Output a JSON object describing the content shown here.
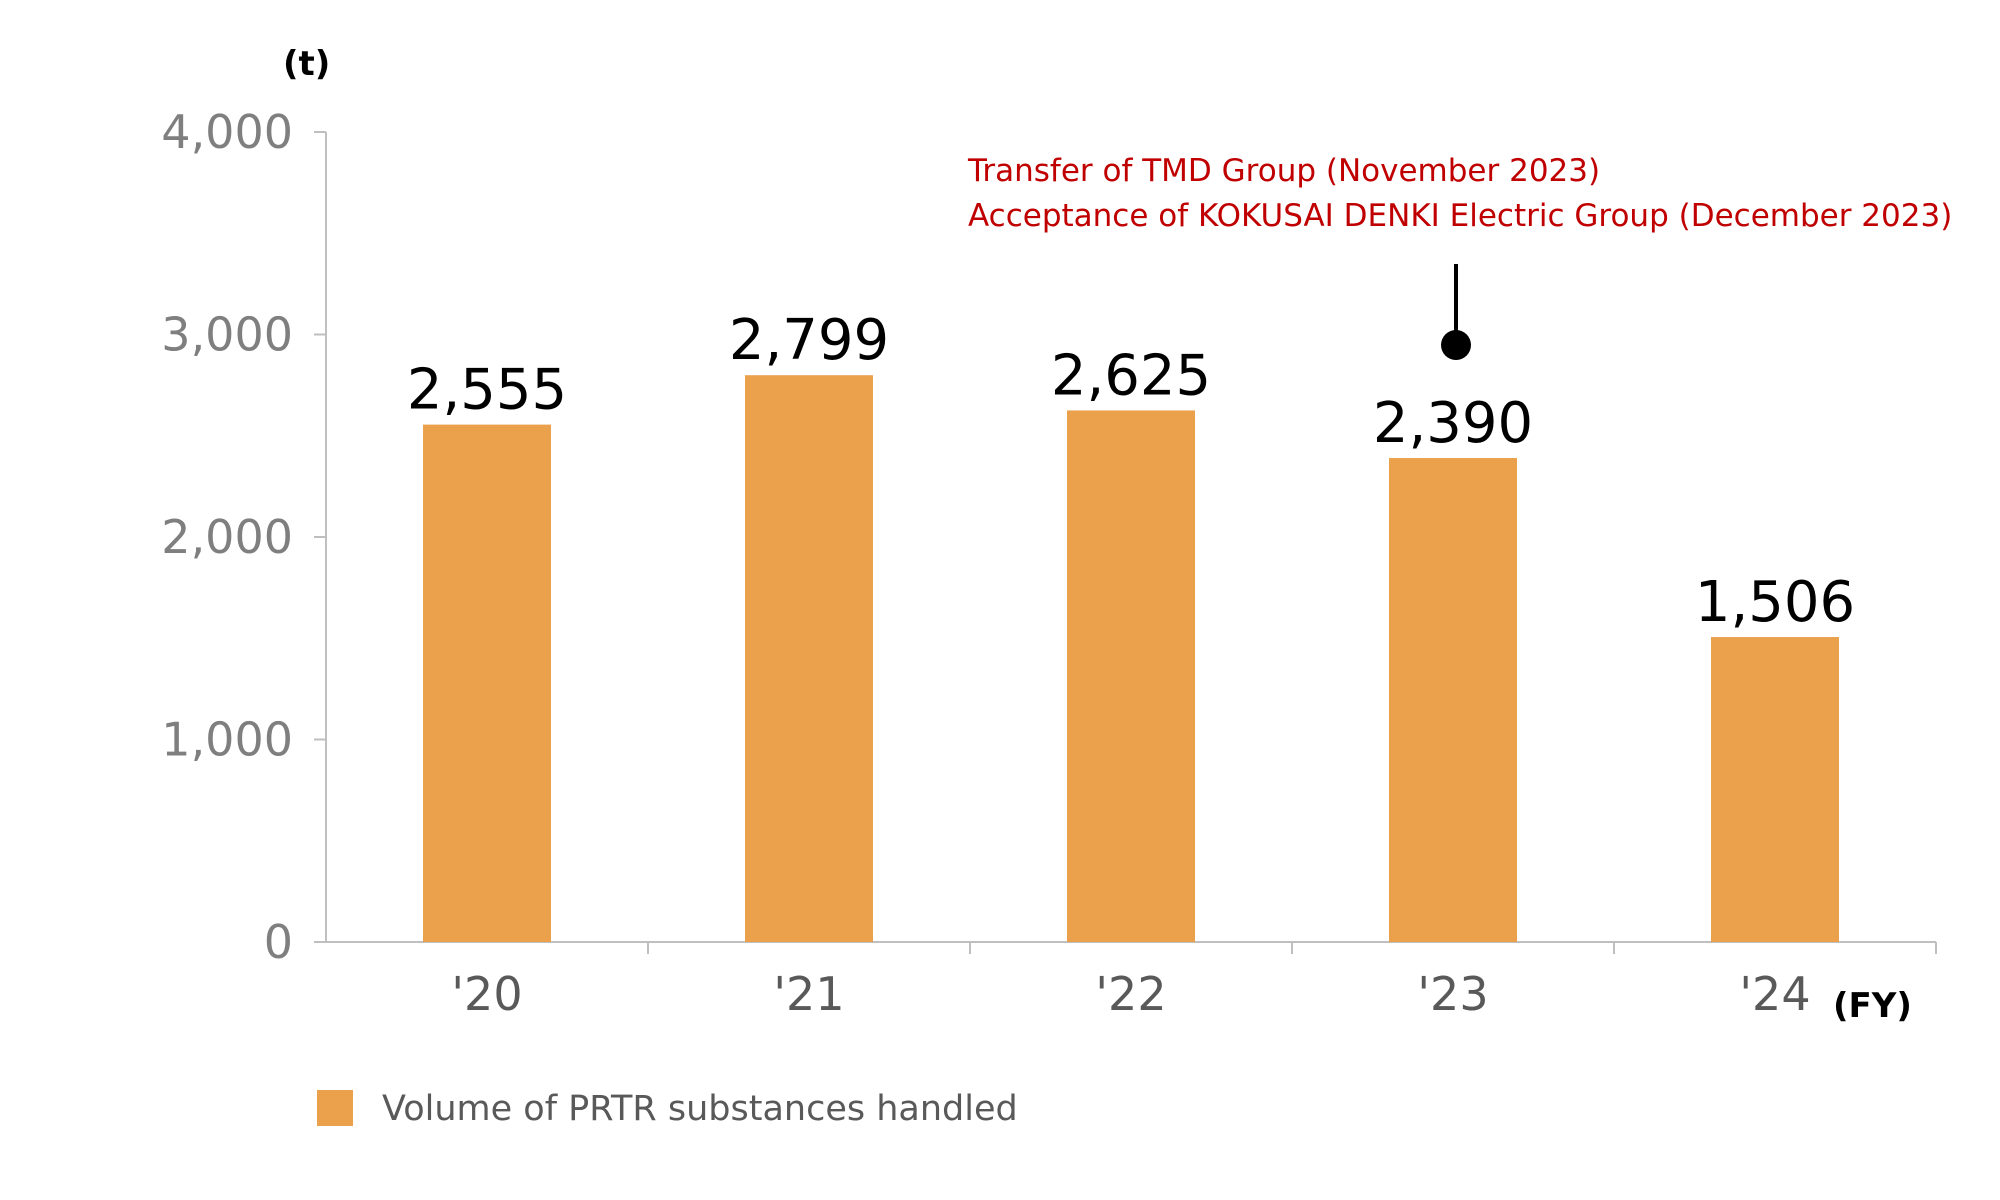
{
  "chart_data": {
    "type": "bar",
    "categories": [
      "'20",
      "'21",
      "'22",
      "'23",
      "'24"
    ],
    "series": [
      {
        "name": "Volume of PRTR substances handled",
        "values": [
          2555,
          2799,
          2625,
          2390,
          1506
        ],
        "color": "#eba04b"
      }
    ],
    "value_labels": [
      "2,555",
      "2,799",
      "2,625",
      "2,390",
      "1,506"
    ],
    "ylabel": "(t)",
    "xlabel": "(FY)",
    "ylim": [
      0,
      4000
    ],
    "yticks": [
      0,
      1000,
      2000,
      3000,
      4000
    ],
    "ytick_labels": [
      "0",
      "1,000",
      "2,000",
      "3,000",
      "4,000"
    ],
    "grid": false,
    "legend": {
      "position": "bottom-left",
      "entries": [
        "Volume of PRTR substances handled"
      ]
    },
    "annotations": [
      {
        "category": "'23",
        "lines": [
          "Transfer of TMD Group (November 2023)",
          "Acceptance of KOKUSAI DENKI Electric Group (December 2023)"
        ],
        "color": "#c00000"
      }
    ]
  }
}
